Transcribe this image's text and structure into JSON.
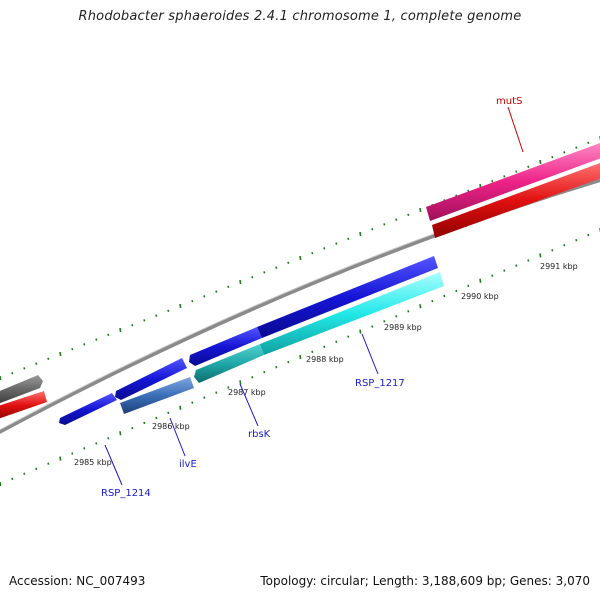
{
  "title": "Rhodobacter sphaeroides 2.4.1 chromosome 1, complete genome",
  "footer": {
    "accession": "Accession: NC_007493",
    "summary": "Topology: circular; Length: 3,188,609 bp; Genes: 3,070"
  },
  "ticks": [
    "2985 kbp",
    "2986 kbp",
    "2987 kbp",
    "2988 kbp",
    "2989 kbp",
    "2990 kbp",
    "2991 kbp"
  ],
  "gene_labels": [
    {
      "name": "mutS",
      "color": "#cc0000"
    },
    {
      "name": "RSP_1217",
      "color": "#1a1acc"
    },
    {
      "name": "rbsK",
      "color": "#1a1acc"
    },
    {
      "name": "ilvE",
      "color": "#1a1acc"
    },
    {
      "name": "RSP_1214",
      "color": "#1a1acc"
    }
  ],
  "colors": {
    "backbone": "#8a8a8a",
    "tick_mark": "#1f7a1f",
    "forward_gene": "#1515d6",
    "forward_gene_light": "#4444ff",
    "cyan_feature": "#22e8e8",
    "teal_feature": "#1fa8a8",
    "steel_feature": "#3a6fb8",
    "magenta_feature": "#ee2288",
    "red_feature": "#e01010",
    "grey_feature": "#666666"
  }
}
